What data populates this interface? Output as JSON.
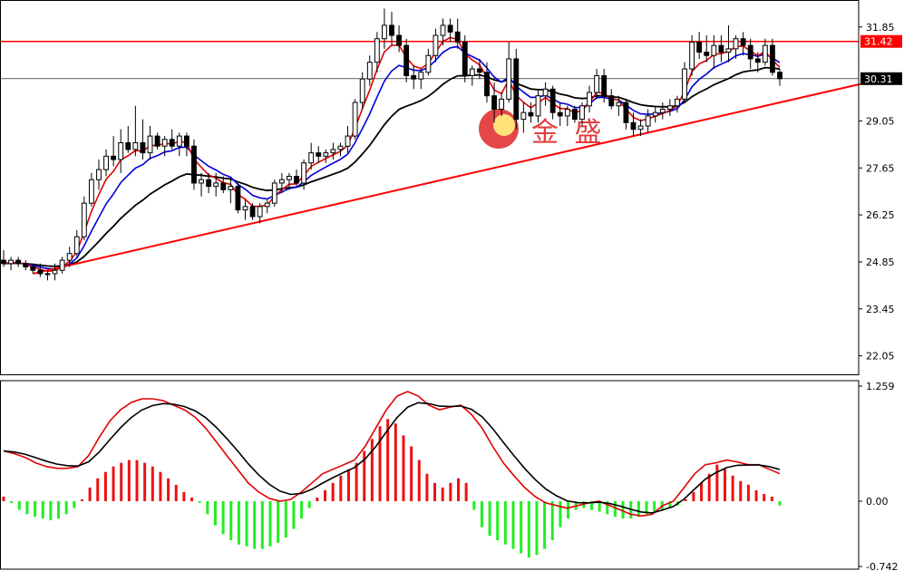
{
  "chart_data": [
    {
      "type": "candlestick",
      "ylim": [
        21.5,
        32.6
      ],
      "y_ticks": [
        "31.85",
        "29.05",
        "27.65",
        "26.25",
        "24.85",
        "23.45",
        "22.05"
      ],
      "level_lines": [
        {
          "value": 31.42,
          "label": "31.42",
          "color": "#ff0000"
        },
        {
          "value": 30.31,
          "label": "30.31",
          "color": "#000000"
        }
      ],
      "logo_text": "金 盛",
      "colors": {
        "up": "#ffffff",
        "down": "#000000",
        "ma_fast": "#e00000",
        "ma_mid": "#0000dd",
        "ma_slow": "#000000",
        "trendline": "#ff0000"
      },
      "candles": [
        {
          "o": 24.9,
          "h": 25.2,
          "l": 24.7,
          "c": 24.8
        },
        {
          "o": 24.8,
          "h": 25.0,
          "l": 24.6,
          "c": 24.9
        },
        {
          "o": 24.9,
          "h": 25.0,
          "l": 24.7,
          "c": 24.8
        },
        {
          "o": 24.8,
          "h": 24.9,
          "l": 24.6,
          "c": 24.7
        },
        {
          "o": 24.7,
          "h": 24.8,
          "l": 24.5,
          "c": 24.6
        },
        {
          "o": 24.6,
          "h": 24.8,
          "l": 24.4,
          "c": 24.5
        },
        {
          "o": 24.5,
          "h": 24.6,
          "l": 24.3,
          "c": 24.5
        },
        {
          "o": 24.5,
          "h": 24.8,
          "l": 24.3,
          "c": 24.6
        },
        {
          "o": 24.6,
          "h": 25.0,
          "l": 24.5,
          "c": 24.9
        },
        {
          "o": 24.9,
          "h": 25.3,
          "l": 24.7,
          "c": 25.1
        },
        {
          "o": 25.1,
          "h": 25.8,
          "l": 25.0,
          "c": 25.6
        },
        {
          "o": 25.6,
          "h": 26.8,
          "l": 25.5,
          "c": 26.6
        },
        {
          "o": 26.6,
          "h": 27.5,
          "l": 26.5,
          "c": 27.3
        },
        {
          "o": 27.3,
          "h": 27.9,
          "l": 27.0,
          "c": 27.6
        },
        {
          "o": 27.6,
          "h": 28.2,
          "l": 27.4,
          "c": 28.0
        },
        {
          "o": 28.0,
          "h": 28.6,
          "l": 27.7,
          "c": 27.9
        },
        {
          "o": 27.9,
          "h": 28.8,
          "l": 27.5,
          "c": 28.4
        },
        {
          "o": 28.4,
          "h": 28.9,
          "l": 28.1,
          "c": 28.2
        },
        {
          "o": 28.2,
          "h": 29.5,
          "l": 28.0,
          "c": 28.4
        },
        {
          "o": 28.4,
          "h": 29.1,
          "l": 27.9,
          "c": 28.1
        },
        {
          "o": 28.1,
          "h": 28.9,
          "l": 27.9,
          "c": 28.6
        },
        {
          "o": 28.6,
          "h": 28.7,
          "l": 28.2,
          "c": 28.3
        },
        {
          "o": 28.3,
          "h": 28.6,
          "l": 28.0,
          "c": 28.5
        },
        {
          "o": 28.5,
          "h": 28.8,
          "l": 28.2,
          "c": 28.3
        },
        {
          "o": 28.3,
          "h": 28.7,
          "l": 28.0,
          "c": 28.6
        },
        {
          "o": 28.6,
          "h": 28.7,
          "l": 28.0,
          "c": 28.3
        },
        {
          "o": 28.3,
          "h": 28.5,
          "l": 27.0,
          "c": 27.2
        },
        {
          "o": 27.2,
          "h": 27.5,
          "l": 26.8,
          "c": 27.3
        },
        {
          "o": 27.3,
          "h": 27.5,
          "l": 26.9,
          "c": 27.1
        },
        {
          "o": 27.1,
          "h": 27.5,
          "l": 26.8,
          "c": 27.2
        },
        {
          "o": 27.2,
          "h": 27.4,
          "l": 26.9,
          "c": 27.0
        },
        {
          "o": 27.0,
          "h": 27.3,
          "l": 26.6,
          "c": 27.1
        },
        {
          "o": 27.1,
          "h": 27.2,
          "l": 26.3,
          "c": 26.4
        },
        {
          "o": 26.4,
          "h": 26.7,
          "l": 26.1,
          "c": 26.5
        },
        {
          "o": 26.5,
          "h": 26.6,
          "l": 26.1,
          "c": 26.2
        },
        {
          "o": 26.2,
          "h": 26.6,
          "l": 26.0,
          "c": 26.5
        },
        {
          "o": 26.5,
          "h": 26.7,
          "l": 26.3,
          "c": 26.6
        },
        {
          "o": 26.6,
          "h": 27.3,
          "l": 26.5,
          "c": 27.2
        },
        {
          "o": 27.2,
          "h": 27.5,
          "l": 26.9,
          "c": 27.3
        },
        {
          "o": 27.3,
          "h": 27.5,
          "l": 27.0,
          "c": 27.4
        },
        {
          "o": 27.4,
          "h": 27.6,
          "l": 27.1,
          "c": 27.2
        },
        {
          "o": 27.2,
          "h": 27.9,
          "l": 27.0,
          "c": 27.8
        },
        {
          "o": 27.8,
          "h": 28.4,
          "l": 27.6,
          "c": 28.1
        },
        {
          "o": 28.1,
          "h": 28.3,
          "l": 27.8,
          "c": 28.0
        },
        {
          "o": 28.0,
          "h": 28.2,
          "l": 27.8,
          "c": 28.1
        },
        {
          "o": 28.1,
          "h": 28.4,
          "l": 27.9,
          "c": 28.2
        },
        {
          "o": 28.2,
          "h": 28.4,
          "l": 28.0,
          "c": 28.3
        },
        {
          "o": 28.3,
          "h": 28.9,
          "l": 28.1,
          "c": 28.6
        },
        {
          "o": 28.6,
          "h": 29.7,
          "l": 28.5,
          "c": 29.6
        },
        {
          "o": 29.6,
          "h": 30.5,
          "l": 29.4,
          "c": 30.3
        },
        {
          "o": 30.3,
          "h": 31.0,
          "l": 30.1,
          "c": 30.8
        },
        {
          "o": 30.8,
          "h": 31.7,
          "l": 30.5,
          "c": 31.5
        },
        {
          "o": 31.5,
          "h": 32.4,
          "l": 31.2,
          "c": 31.9
        },
        {
          "o": 31.9,
          "h": 32.3,
          "l": 31.3,
          "c": 31.6
        },
        {
          "o": 31.6,
          "h": 31.9,
          "l": 31.1,
          "c": 31.3
        },
        {
          "o": 31.3,
          "h": 31.5,
          "l": 30.2,
          "c": 30.4
        },
        {
          "o": 30.4,
          "h": 30.7,
          "l": 30.0,
          "c": 30.3
        },
        {
          "o": 30.3,
          "h": 30.6,
          "l": 30.0,
          "c": 30.5
        },
        {
          "o": 30.5,
          "h": 31.2,
          "l": 30.4,
          "c": 31.0
        },
        {
          "o": 31.0,
          "h": 31.8,
          "l": 30.8,
          "c": 31.6
        },
        {
          "o": 31.6,
          "h": 32.1,
          "l": 31.3,
          "c": 31.9
        },
        {
          "o": 31.9,
          "h": 32.1,
          "l": 31.4,
          "c": 31.7
        },
        {
          "o": 31.7,
          "h": 32.1,
          "l": 31.2,
          "c": 31.4
        },
        {
          "o": 31.4,
          "h": 31.6,
          "l": 30.2,
          "c": 30.4
        },
        {
          "o": 30.4,
          "h": 30.7,
          "l": 30.1,
          "c": 30.6
        },
        {
          "o": 30.6,
          "h": 30.9,
          "l": 30.3,
          "c": 30.5
        },
        {
          "o": 30.5,
          "h": 30.8,
          "l": 29.6,
          "c": 29.8
        },
        {
          "o": 29.8,
          "h": 30.2,
          "l": 29.0,
          "c": 29.4
        },
        {
          "o": 29.4,
          "h": 29.9,
          "l": 29.2,
          "c": 29.7
        },
        {
          "o": 29.7,
          "h": 31.4,
          "l": 29.6,
          "c": 30.9
        },
        {
          "o": 30.9,
          "h": 31.2,
          "l": 28.8,
          "c": 29.1
        },
        {
          "o": 29.1,
          "h": 29.6,
          "l": 28.7,
          "c": 29.3
        },
        {
          "o": 29.3,
          "h": 29.6,
          "l": 29.0,
          "c": 29.2
        },
        {
          "o": 29.2,
          "h": 30.0,
          "l": 29.0,
          "c": 29.8
        },
        {
          "o": 29.8,
          "h": 30.2,
          "l": 29.5,
          "c": 30.0
        },
        {
          "o": 30.0,
          "h": 30.1,
          "l": 29.1,
          "c": 29.3
        },
        {
          "o": 29.3,
          "h": 29.6,
          "l": 28.9,
          "c": 29.2
        },
        {
          "o": 29.2,
          "h": 29.5,
          "l": 28.9,
          "c": 29.4
        },
        {
          "o": 29.4,
          "h": 29.5,
          "l": 29.0,
          "c": 29.1
        },
        {
          "o": 29.1,
          "h": 29.6,
          "l": 28.9,
          "c": 29.5
        },
        {
          "o": 29.5,
          "h": 30.1,
          "l": 29.3,
          "c": 29.9
        },
        {
          "o": 29.9,
          "h": 30.6,
          "l": 29.7,
          "c": 30.4
        },
        {
          "o": 30.4,
          "h": 30.6,
          "l": 29.6,
          "c": 29.8
        },
        {
          "o": 29.8,
          "h": 30.0,
          "l": 29.4,
          "c": 29.5
        },
        {
          "o": 29.5,
          "h": 29.8,
          "l": 29.2,
          "c": 29.6
        },
        {
          "o": 29.6,
          "h": 29.7,
          "l": 28.8,
          "c": 29.0
        },
        {
          "o": 29.0,
          "h": 29.3,
          "l": 28.6,
          "c": 28.8
        },
        {
          "o": 28.8,
          "h": 29.1,
          "l": 28.6,
          "c": 28.9
        },
        {
          "o": 28.9,
          "h": 29.4,
          "l": 28.7,
          "c": 29.2
        },
        {
          "o": 29.2,
          "h": 29.5,
          "l": 29.0,
          "c": 29.3
        },
        {
          "o": 29.3,
          "h": 29.6,
          "l": 29.1,
          "c": 29.4
        },
        {
          "o": 29.4,
          "h": 29.7,
          "l": 29.2,
          "c": 29.5
        },
        {
          "o": 29.5,
          "h": 29.8,
          "l": 29.3,
          "c": 29.7
        },
        {
          "o": 29.7,
          "h": 30.8,
          "l": 29.6,
          "c": 30.6
        },
        {
          "o": 30.6,
          "h": 31.6,
          "l": 30.4,
          "c": 31.4
        },
        {
          "o": 31.4,
          "h": 31.7,
          "l": 30.9,
          "c": 31.1
        },
        {
          "o": 31.1,
          "h": 31.6,
          "l": 30.8,
          "c": 31.0
        },
        {
          "o": 31.0,
          "h": 31.6,
          "l": 30.6,
          "c": 31.3
        },
        {
          "o": 31.3,
          "h": 31.6,
          "l": 30.8,
          "c": 31.1
        },
        {
          "o": 31.1,
          "h": 31.9,
          "l": 30.8,
          "c": 31.2
        },
        {
          "o": 31.2,
          "h": 31.6,
          "l": 30.9,
          "c": 31.5
        },
        {
          "o": 31.5,
          "h": 31.7,
          "l": 31.0,
          "c": 31.3
        },
        {
          "o": 31.3,
          "h": 31.5,
          "l": 30.6,
          "c": 30.9
        },
        {
          "o": 30.9,
          "h": 31.1,
          "l": 30.5,
          "c": 30.8
        },
        {
          "o": 30.8,
          "h": 31.5,
          "l": 30.7,
          "c": 31.3
        },
        {
          "o": 31.3,
          "h": 31.5,
          "l": 30.4,
          "c": 30.5
        },
        {
          "o": 30.5,
          "h": 30.6,
          "l": 30.1,
          "c": 30.31
        }
      ],
      "trendline": {
        "start": {
          "bar": 4,
          "value": 24.5
        },
        "end": {
          "bar": 117,
          "value": 30.15
        }
      }
    },
    {
      "type": "macd",
      "ylim": [
        -0.742,
        1.259
      ],
      "y_ticks": [
        "1.259",
        "0.00",
        "-0.742"
      ],
      "colors": {
        "pos": "#ee1111",
        "neg": "#22ee22",
        "fast": "#e00000",
        "slow": "#000000"
      },
      "histogram": [
        0.05,
        -0.02,
        -0.1,
        -0.15,
        -0.18,
        -0.2,
        -0.22,
        -0.2,
        -0.15,
        -0.08,
        0.02,
        0.15,
        0.25,
        0.32,
        0.38,
        0.42,
        0.45,
        0.45,
        0.42,
        0.38,
        0.32,
        0.25,
        0.18,
        0.1,
        0.04,
        -0.02,
        -0.15,
        -0.28,
        -0.38,
        -0.45,
        -0.5,
        -0.52,
        -0.55,
        -0.55,
        -0.52,
        -0.48,
        -0.42,
        -0.32,
        -0.2,
        -0.08,
        0.04,
        0.12,
        0.2,
        0.28,
        0.35,
        0.42,
        0.55,
        0.68,
        0.82,
        0.9,
        0.85,
        0.72,
        0.6,
        0.45,
        0.3,
        0.2,
        0.15,
        0.2,
        0.25,
        0.2,
        -0.1,
        -0.3,
        -0.4,
        -0.45,
        -0.5,
        -0.55,
        -0.6,
        -0.65,
        -0.62,
        -0.55,
        -0.45,
        -0.3,
        -0.2,
        -0.1,
        -0.08,
        -0.1,
        -0.12,
        -0.15,
        -0.18,
        -0.2,
        -0.2,
        -0.18,
        -0.15,
        -0.12,
        -0.1,
        -0.08,
        -0.05,
        0.02,
        0.1,
        0.2,
        0.3,
        0.4,
        0.35,
        0.28,
        0.22,
        0.18,
        0.12,
        0.08,
        0.05,
        -0.05
      ],
      "fast": [
        0.55,
        0.52,
        0.48,
        0.42,
        0.38,
        0.36,
        0.36,
        0.38,
        0.5,
        0.7,
        0.88,
        1.0,
        1.08,
        1.12,
        1.12,
        1.1,
        1.05,
        1.0,
        0.92,
        0.8,
        0.65,
        0.5,
        0.35,
        0.2,
        0.1,
        0.03,
        0.0,
        0.02,
        0.1,
        0.2,
        0.3,
        0.35,
        0.4,
        0.45,
        0.6,
        0.8,
        1.0,
        1.15,
        1.2,
        1.15,
        1.05,
        1.0,
        1.03,
        1.05,
        0.95,
        0.8,
        0.6,
        0.42,
        0.28,
        0.15,
        0.05,
        -0.02,
        -0.05,
        -0.08,
        -0.05,
        -0.02,
        0.0,
        -0.05,
        -0.1,
        -0.15,
        -0.17,
        -0.15,
        -0.05,
        0.0,
        0.15,
        0.3,
        0.4,
        0.42,
        0.45,
        0.43,
        0.4,
        0.4,
        0.35,
        0.3
      ]
    }
  ]
}
